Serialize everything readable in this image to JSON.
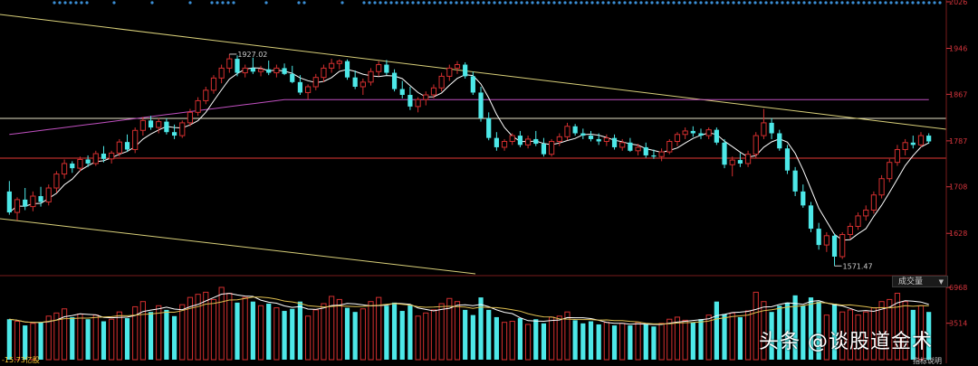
{
  "chart_data": {
    "type": "candlestick",
    "price_axis_ticks": [
      "2026",
      "1946",
      "1867",
      "1787",
      "1708",
      "1628"
    ],
    "volume_axis_ticks": [
      "6968",
      "3514"
    ],
    "annotations": {
      "high": "1927.02",
      "low": "1571.47"
    },
    "colors": {
      "up": "#d32f2f",
      "down": "#4de8e8",
      "ma5": "#ffffff",
      "ma_long": "#c050c0",
      "trend": "#d9d07a",
      "hline": "#e53935",
      "axis": "#d4343c"
    },
    "candles": [
      {
        "o": 1700,
        "h": 1718,
        "l": 1660,
        "c": 1664
      },
      {
        "o": 1664,
        "h": 1690,
        "l": 1650,
        "c": 1686
      },
      {
        "o": 1686,
        "h": 1706,
        "l": 1668,
        "c": 1674
      },
      {
        "o": 1674,
        "h": 1700,
        "l": 1666,
        "c": 1692
      },
      {
        "o": 1692,
        "h": 1708,
        "l": 1674,
        "c": 1682
      },
      {
        "o": 1682,
        "h": 1712,
        "l": 1676,
        "c": 1706
      },
      {
        "o": 1706,
        "h": 1735,
        "l": 1698,
        "c": 1730
      },
      {
        "o": 1730,
        "h": 1755,
        "l": 1722,
        "c": 1748
      },
      {
        "o": 1748,
        "h": 1752,
        "l": 1732,
        "c": 1740
      },
      {
        "o": 1740,
        "h": 1760,
        "l": 1734,
        "c": 1755
      },
      {
        "o": 1755,
        "h": 1762,
        "l": 1742,
        "c": 1748
      },
      {
        "o": 1748,
        "h": 1770,
        "l": 1744,
        "c": 1765
      },
      {
        "o": 1765,
        "h": 1778,
        "l": 1750,
        "c": 1756
      },
      {
        "o": 1756,
        "h": 1770,
        "l": 1748,
        "c": 1766
      },
      {
        "o": 1766,
        "h": 1790,
        "l": 1760,
        "c": 1785
      },
      {
        "o": 1785,
        "h": 1798,
        "l": 1768,
        "c": 1772
      },
      {
        "o": 1772,
        "h": 1810,
        "l": 1766,
        "c": 1805
      },
      {
        "o": 1805,
        "h": 1828,
        "l": 1796,
        "c": 1822
      },
      {
        "o": 1822,
        "h": 1830,
        "l": 1806,
        "c": 1810
      },
      {
        "o": 1810,
        "h": 1826,
        "l": 1800,
        "c": 1820
      },
      {
        "o": 1820,
        "h": 1826,
        "l": 1798,
        "c": 1802
      },
      {
        "o": 1802,
        "h": 1815,
        "l": 1790,
        "c": 1796
      },
      {
        "o": 1796,
        "h": 1822,
        "l": 1792,
        "c": 1818
      },
      {
        "o": 1818,
        "h": 1842,
        "l": 1812,
        "c": 1836
      },
      {
        "o": 1836,
        "h": 1862,
        "l": 1830,
        "c": 1856
      },
      {
        "o": 1856,
        "h": 1880,
        "l": 1850,
        "c": 1874
      },
      {
        "o": 1874,
        "h": 1900,
        "l": 1868,
        "c": 1895
      },
      {
        "o": 1895,
        "h": 1918,
        "l": 1886,
        "c": 1912
      },
      {
        "o": 1912,
        "h": 1936,
        "l": 1904,
        "c": 1928
      },
      {
        "o": 1928,
        "h": 1934,
        "l": 1898,
        "c": 1904
      },
      {
        "o": 1904,
        "h": 1918,
        "l": 1896,
        "c": 1912
      },
      {
        "o": 1912,
        "h": 1930,
        "l": 1902,
        "c": 1906
      },
      {
        "o": 1906,
        "h": 1916,
        "l": 1898,
        "c": 1910
      },
      {
        "o": 1910,
        "h": 1925,
        "l": 1900,
        "c": 1904
      },
      {
        "o": 1904,
        "h": 1918,
        "l": 1896,
        "c": 1912
      },
      {
        "o": 1912,
        "h": 1920,
        "l": 1900,
        "c": 1902
      },
      {
        "o": 1902,
        "h": 1916,
        "l": 1886,
        "c": 1888
      },
      {
        "o": 1888,
        "h": 1900,
        "l": 1866,
        "c": 1870
      },
      {
        "o": 1870,
        "h": 1884,
        "l": 1858,
        "c": 1880
      },
      {
        "o": 1880,
        "h": 1902,
        "l": 1874,
        "c": 1896
      },
      {
        "o": 1896,
        "h": 1918,
        "l": 1888,
        "c": 1912
      },
      {
        "o": 1912,
        "h": 1928,
        "l": 1904,
        "c": 1920
      },
      {
        "o": 1920,
        "h": 1927,
        "l": 1910,
        "c": 1924
      },
      {
        "o": 1924,
        "h": 1927,
        "l": 1892,
        "c": 1896
      },
      {
        "o": 1896,
        "h": 1908,
        "l": 1876,
        "c": 1880
      },
      {
        "o": 1880,
        "h": 1894,
        "l": 1866,
        "c": 1888
      },
      {
        "o": 1888,
        "h": 1912,
        "l": 1882,
        "c": 1906
      },
      {
        "o": 1906,
        "h": 1924,
        "l": 1898,
        "c": 1918
      },
      {
        "o": 1918,
        "h": 1926,
        "l": 1900,
        "c": 1904
      },
      {
        "o": 1904,
        "h": 1910,
        "l": 1872,
        "c": 1876
      },
      {
        "o": 1876,
        "h": 1890,
        "l": 1860,
        "c": 1866
      },
      {
        "o": 1866,
        "h": 1880,
        "l": 1840,
        "c": 1846
      },
      {
        "o": 1846,
        "h": 1862,
        "l": 1836,
        "c": 1858
      },
      {
        "o": 1858,
        "h": 1872,
        "l": 1848,
        "c": 1866
      },
      {
        "o": 1866,
        "h": 1884,
        "l": 1860,
        "c": 1878
      },
      {
        "o": 1878,
        "h": 1904,
        "l": 1872,
        "c": 1898
      },
      {
        "o": 1898,
        "h": 1918,
        "l": 1890,
        "c": 1912
      },
      {
        "o": 1912,
        "h": 1924,
        "l": 1902,
        "c": 1918
      },
      {
        "o": 1918,
        "h": 1922,
        "l": 1894,
        "c": 1898
      },
      {
        "o": 1898,
        "h": 1906,
        "l": 1866,
        "c": 1870
      },
      {
        "o": 1870,
        "h": 1880,
        "l": 1820,
        "c": 1826
      },
      {
        "o": 1826,
        "h": 1836,
        "l": 1788,
        "c": 1792
      },
      {
        "o": 1792,
        "h": 1802,
        "l": 1770,
        "c": 1776
      },
      {
        "o": 1776,
        "h": 1790,
        "l": 1770,
        "c": 1786
      },
      {
        "o": 1786,
        "h": 1800,
        "l": 1780,
        "c": 1796
      },
      {
        "o": 1796,
        "h": 1804,
        "l": 1776,
        "c": 1780
      },
      {
        "o": 1780,
        "h": 1796,
        "l": 1774,
        "c": 1790
      },
      {
        "o": 1790,
        "h": 1804,
        "l": 1778,
        "c": 1782
      },
      {
        "o": 1782,
        "h": 1792,
        "l": 1760,
        "c": 1764
      },
      {
        "o": 1764,
        "h": 1790,
        "l": 1760,
        "c": 1786
      },
      {
        "o": 1786,
        "h": 1800,
        "l": 1778,
        "c": 1794
      },
      {
        "o": 1794,
        "h": 1818,
        "l": 1788,
        "c": 1812
      },
      {
        "o": 1812,
        "h": 1816,
        "l": 1796,
        "c": 1800
      },
      {
        "o": 1800,
        "h": 1808,
        "l": 1790,
        "c": 1796
      },
      {
        "o": 1796,
        "h": 1804,
        "l": 1786,
        "c": 1790
      },
      {
        "o": 1790,
        "h": 1800,
        "l": 1780,
        "c": 1786
      },
      {
        "o": 1786,
        "h": 1798,
        "l": 1778,
        "c": 1792
      },
      {
        "o": 1792,
        "h": 1798,
        "l": 1772,
        "c": 1776
      },
      {
        "o": 1776,
        "h": 1790,
        "l": 1770,
        "c": 1784
      },
      {
        "o": 1784,
        "h": 1792,
        "l": 1768,
        "c": 1770
      },
      {
        "o": 1770,
        "h": 1782,
        "l": 1762,
        "c": 1776
      },
      {
        "o": 1776,
        "h": 1784,
        "l": 1758,
        "c": 1762
      },
      {
        "o": 1762,
        "h": 1772,
        "l": 1756,
        "c": 1760
      },
      {
        "o": 1760,
        "h": 1774,
        "l": 1752,
        "c": 1768
      },
      {
        "o": 1768,
        "h": 1790,
        "l": 1764,
        "c": 1786
      },
      {
        "o": 1786,
        "h": 1802,
        "l": 1778,
        "c": 1798
      },
      {
        "o": 1798,
        "h": 1810,
        "l": 1790,
        "c": 1804
      },
      {
        "o": 1804,
        "h": 1812,
        "l": 1794,
        "c": 1800
      },
      {
        "o": 1800,
        "h": 1808,
        "l": 1790,
        "c": 1796
      },
      {
        "o": 1796,
        "h": 1810,
        "l": 1790,
        "c": 1806
      },
      {
        "o": 1806,
        "h": 1810,
        "l": 1780,
        "c": 1784
      },
      {
        "o": 1784,
        "h": 1790,
        "l": 1740,
        "c": 1746
      },
      {
        "o": 1746,
        "h": 1760,
        "l": 1726,
        "c": 1754
      },
      {
        "o": 1754,
        "h": 1766,
        "l": 1742,
        "c": 1748
      },
      {
        "o": 1748,
        "h": 1770,
        "l": 1742,
        "c": 1764
      },
      {
        "o": 1764,
        "h": 1802,
        "l": 1758,
        "c": 1796
      },
      {
        "o": 1796,
        "h": 1842,
        "l": 1790,
        "c": 1818
      },
      {
        "o": 1818,
        "h": 1826,
        "l": 1790,
        "c": 1800
      },
      {
        "o": 1800,
        "h": 1806,
        "l": 1770,
        "c": 1774
      },
      {
        "o": 1774,
        "h": 1780,
        "l": 1730,
        "c": 1736
      },
      {
        "o": 1736,
        "h": 1742,
        "l": 1692,
        "c": 1700
      },
      {
        "o": 1700,
        "h": 1712,
        "l": 1672,
        "c": 1676
      },
      {
        "o": 1676,
        "h": 1682,
        "l": 1630,
        "c": 1636
      },
      {
        "o": 1636,
        "h": 1646,
        "l": 1600,
        "c": 1608
      },
      {
        "o": 1608,
        "h": 1630,
        "l": 1596,
        "c": 1624
      },
      {
        "o": 1624,
        "h": 1628,
        "l": 1572,
        "c": 1588
      },
      {
        "o": 1588,
        "h": 1630,
        "l": 1584,
        "c": 1626
      },
      {
        "o": 1626,
        "h": 1646,
        "l": 1618,
        "c": 1640
      },
      {
        "o": 1640,
        "h": 1664,
        "l": 1634,
        "c": 1658
      },
      {
        "o": 1658,
        "h": 1676,
        "l": 1650,
        "c": 1668
      },
      {
        "o": 1668,
        "h": 1700,
        "l": 1662,
        "c": 1694
      },
      {
        "o": 1694,
        "h": 1728,
        "l": 1688,
        "c": 1722
      },
      {
        "o": 1722,
        "h": 1756,
        "l": 1716,
        "c": 1750
      },
      {
        "o": 1750,
        "h": 1780,
        "l": 1744,
        "c": 1772
      },
      {
        "o": 1772,
        "h": 1790,
        "l": 1762,
        "c": 1784
      },
      {
        "o": 1784,
        "h": 1796,
        "l": 1774,
        "c": 1780
      },
      {
        "o": 1780,
        "h": 1802,
        "l": 1776,
        "c": 1796
      },
      {
        "o": 1796,
        "h": 1800,
        "l": 1782,
        "c": 1786
      }
    ],
    "volume": [
      3900,
      3700,
      3300,
      3500,
      3600,
      4200,
      4500,
      4900,
      4100,
      4400,
      3900,
      4300,
      3700,
      3900,
      4600,
      4000,
      5100,
      5600,
      4600,
      5200,
      4800,
      4200,
      5300,
      6000,
      6300,
      6500,
      5800,
      6968,
      6400,
      5500,
      6000,
      5600,
      5200,
      5400,
      5000,
      4700,
      4900,
      5600,
      4200,
      4800,
      5400,
      6100,
      5800,
      5000,
      4600,
      4900,
      5600,
      6000,
      5200,
      5500,
      4700,
      5300,
      4200,
      4500,
      4800,
      5400,
      5900,
      5600,
      4800,
      4300,
      6000,
      4800,
      4100,
      3600,
      3700,
      4000,
      3400,
      3900,
      3500,
      4100,
      4200,
      4600,
      3800,
      3500,
      3700,
      3400,
      3600,
      3300,
      3500,
      3300,
      3600,
      3400,
      3200,
      3500,
      3900,
      4100,
      3800,
      3600,
      3900,
      4300,
      5600,
      4400,
      4500,
      4100,
      4700,
      6500,
      5600,
      4600,
      5200,
      5500,
      6200,
      5200,
      6000,
      5600,
      4300,
      5400,
      4600,
      4800,
      4300,
      4600,
      5000,
      5600,
      5800,
      6400,
      5600,
      4800,
      5200,
      4600
    ]
  },
  "ui": {
    "vol_label": "成交量",
    "dropdown_arrow": "▼",
    "watermark": "头条 @谈股道金术",
    "bottom_left": "-15.73亿股",
    "bottom_right": "指标说明"
  }
}
